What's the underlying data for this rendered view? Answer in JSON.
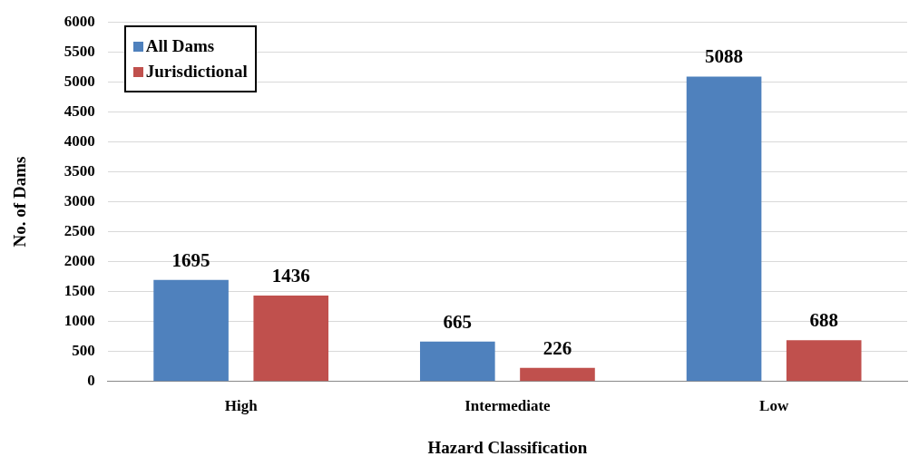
{
  "chart_data": {
    "type": "bar",
    "xlabel": "Hazard Classification",
    "ylabel": "No. of Dams",
    "categories": [
      "High",
      "Intermediate",
      "Low"
    ],
    "series": [
      {
        "name": "All Dams",
        "color": "#4f81bd",
        "values": [
          1695,
          665,
          5088
        ]
      },
      {
        "name": "Jurisdictional",
        "color": "#c0504d",
        "values": [
          1436,
          226,
          688
        ]
      }
    ],
    "ylim": [
      0,
      6000
    ],
    "yticks": [
      0,
      500,
      1000,
      1500,
      2000,
      2500,
      3000,
      3500,
      4000,
      4500,
      5000,
      5500,
      6000
    ],
    "grid": "y",
    "legend": "top left",
    "data_labels": true
  }
}
